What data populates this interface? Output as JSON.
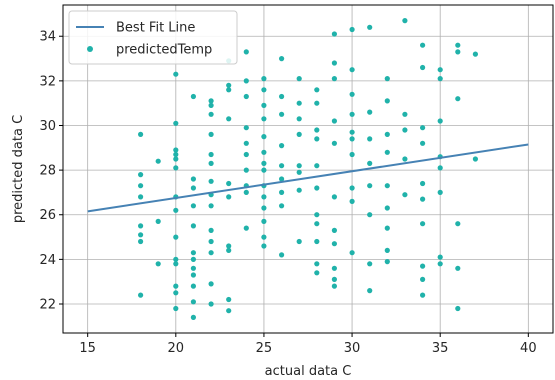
{
  "chart_data": {
    "type": "scatter",
    "xlabel": "actual data C",
    "ylabel": "predicted data C",
    "xlim": [
      13.6,
      41.4
    ],
    "ylim": [
      20.7,
      35.4
    ],
    "xticks": [
      15,
      20,
      25,
      30,
      35,
      40
    ],
    "yticks": [
      22,
      24,
      26,
      28,
      30,
      32,
      34
    ],
    "grid": true,
    "legend_position": "top-left",
    "series": [
      {
        "name": "Best Fit Line",
        "kind": "line",
        "color": "#4682b4",
        "points": [
          [
            15,
            26.15
          ],
          [
            40,
            29.15
          ]
        ]
      },
      {
        "name": "predictedTemp",
        "kind": "scatter",
        "color": "#20b2aa",
        "points": [
          [
            18,
            22.4
          ],
          [
            18,
            24.8
          ],
          [
            18,
            25.1
          ],
          [
            18,
            25.5
          ],
          [
            18,
            26.8
          ],
          [
            18,
            27.3
          ],
          [
            18,
            27.8
          ],
          [
            18,
            29.6
          ],
          [
            19,
            23.8
          ],
          [
            19,
            25.7
          ],
          [
            19,
            28.4
          ],
          [
            20,
            21.8
          ],
          [
            20,
            22.5
          ],
          [
            20,
            22.8
          ],
          [
            20,
            23.8
          ],
          [
            20,
            24.0
          ],
          [
            20,
            25.0
          ],
          [
            20,
            26.2
          ],
          [
            20,
            26.8
          ],
          [
            20,
            28.1
          ],
          [
            20,
            28.5
          ],
          [
            20,
            28.7
          ],
          [
            20,
            28.9
          ],
          [
            20,
            30.1
          ],
          [
            20,
            32.3
          ],
          [
            21,
            21.4
          ],
          [
            21,
            22.1
          ],
          [
            21,
            22.8
          ],
          [
            21,
            23.3
          ],
          [
            21,
            23.6
          ],
          [
            21,
            24.0
          ],
          [
            21,
            24.3
          ],
          [
            21,
            25.5
          ],
          [
            21,
            26.4
          ],
          [
            21,
            27.2
          ],
          [
            21,
            27.6
          ],
          [
            21,
            31.3
          ],
          [
            22,
            22.0
          ],
          [
            22,
            22.9
          ],
          [
            22,
            24.3
          ],
          [
            22,
            24.8
          ],
          [
            22,
            25.3
          ],
          [
            22,
            26.4
          ],
          [
            22,
            26.9
          ],
          [
            22,
            27.5
          ],
          [
            22,
            28.3
          ],
          [
            22,
            28.7
          ],
          [
            22,
            29.6
          ],
          [
            22,
            30.5
          ],
          [
            22,
            30.9
          ],
          [
            22,
            31.1
          ],
          [
            23,
            21.7
          ],
          [
            23,
            22.2
          ],
          [
            23,
            24.4
          ],
          [
            23,
            24.6
          ],
          [
            23,
            26.8
          ],
          [
            23,
            27.4
          ],
          [
            23,
            30.3
          ],
          [
            23,
            31.6
          ],
          [
            23,
            31.8
          ],
          [
            23,
            32.9
          ],
          [
            24,
            25.4
          ],
          [
            24,
            27.0
          ],
          [
            24,
            27.3
          ],
          [
            24,
            28.0
          ],
          [
            24,
            28.7
          ],
          [
            24,
            29.2
          ],
          [
            24,
            29.9
          ],
          [
            24,
            31.3
          ],
          [
            24,
            32.0
          ],
          [
            24,
            33.3
          ],
          [
            25,
            24.6
          ],
          [
            25,
            25.0
          ],
          [
            25,
            25.7
          ],
          [
            25,
            26.3
          ],
          [
            25,
            26.8
          ],
          [
            25,
            27.3
          ],
          [
            25,
            28.0
          ],
          [
            25,
            28.3
          ],
          [
            25,
            28.8
          ],
          [
            25,
            29.5
          ],
          [
            25,
            30.3
          ],
          [
            25,
            30.9
          ],
          [
            25,
            31.6
          ],
          [
            25,
            32.1
          ],
          [
            26,
            24.2
          ],
          [
            26,
            26.4
          ],
          [
            26,
            27.0
          ],
          [
            26,
            27.6
          ],
          [
            26,
            28.2
          ],
          [
            26,
            29.1
          ],
          [
            26,
            30.5
          ],
          [
            26,
            31.3
          ],
          [
            26,
            33.0
          ],
          [
            27,
            24.8
          ],
          [
            27,
            27.1
          ],
          [
            27,
            27.9
          ],
          [
            27,
            28.2
          ],
          [
            27,
            29.6
          ],
          [
            27,
            30.3
          ],
          [
            27,
            31.0
          ],
          [
            27,
            32.1
          ],
          [
            28,
            23.4
          ],
          [
            28,
            23.8
          ],
          [
            28,
            24.8
          ],
          [
            28,
            25.6
          ],
          [
            28,
            26.0
          ],
          [
            28,
            27.2
          ],
          [
            28,
            28.2
          ],
          [
            28,
            29.4
          ],
          [
            28,
            29.8
          ],
          [
            28,
            31.0
          ],
          [
            28,
            31.6
          ],
          [
            29,
            22.8
          ],
          [
            29,
            23.1
          ],
          [
            29,
            23.6
          ],
          [
            29,
            24.7
          ],
          [
            29,
            25.3
          ],
          [
            29,
            26.8
          ],
          [
            29,
            29.2
          ],
          [
            29,
            30.2
          ],
          [
            29,
            32.1
          ],
          [
            29,
            32.8
          ],
          [
            29,
            34.1
          ],
          [
            30,
            24.3
          ],
          [
            30,
            26.6
          ],
          [
            30,
            27.2
          ],
          [
            30,
            28.7
          ],
          [
            30,
            29.4
          ],
          [
            30,
            29.7
          ],
          [
            30,
            30.5
          ],
          [
            30,
            31.4
          ],
          [
            30,
            32.5
          ],
          [
            30,
            34.3
          ],
          [
            31,
            22.6
          ],
          [
            31,
            23.8
          ],
          [
            31,
            26.0
          ],
          [
            31,
            27.3
          ],
          [
            31,
            28.3
          ],
          [
            31,
            29.4
          ],
          [
            31,
            30.6
          ],
          [
            31,
            34.4
          ],
          [
            32,
            23.9
          ],
          [
            32,
            24.4
          ],
          [
            32,
            25.4
          ],
          [
            32,
            26.3
          ],
          [
            32,
            27.3
          ],
          [
            32,
            28.8
          ],
          [
            32,
            29.6
          ],
          [
            32,
            31.1
          ],
          [
            32,
            32.1
          ],
          [
            33,
            26.9
          ],
          [
            33,
            28.5
          ],
          [
            33,
            29.8
          ],
          [
            33,
            30.5
          ],
          [
            33,
            34.7
          ],
          [
            34,
            22.4
          ],
          [
            34,
            23.1
          ],
          [
            34,
            23.7
          ],
          [
            34,
            25.6
          ],
          [
            34,
            26.7
          ],
          [
            34,
            27.4
          ],
          [
            34,
            29.2
          ],
          [
            34,
            29.9
          ],
          [
            34,
            32.6
          ],
          [
            34,
            33.6
          ],
          [
            35,
            23.8
          ],
          [
            35,
            24.1
          ],
          [
            35,
            27.0
          ],
          [
            35,
            28.1
          ],
          [
            35,
            28.6
          ],
          [
            35,
            30.2
          ],
          [
            35,
            32.1
          ],
          [
            35,
            32.5
          ],
          [
            36,
            21.8
          ],
          [
            36,
            23.6
          ],
          [
            36,
            25.6
          ],
          [
            36,
            31.2
          ],
          [
            36,
            33.3
          ],
          [
            36,
            33.6
          ],
          [
            37,
            28.5
          ],
          [
            37,
            33.2
          ]
        ]
      }
    ]
  }
}
